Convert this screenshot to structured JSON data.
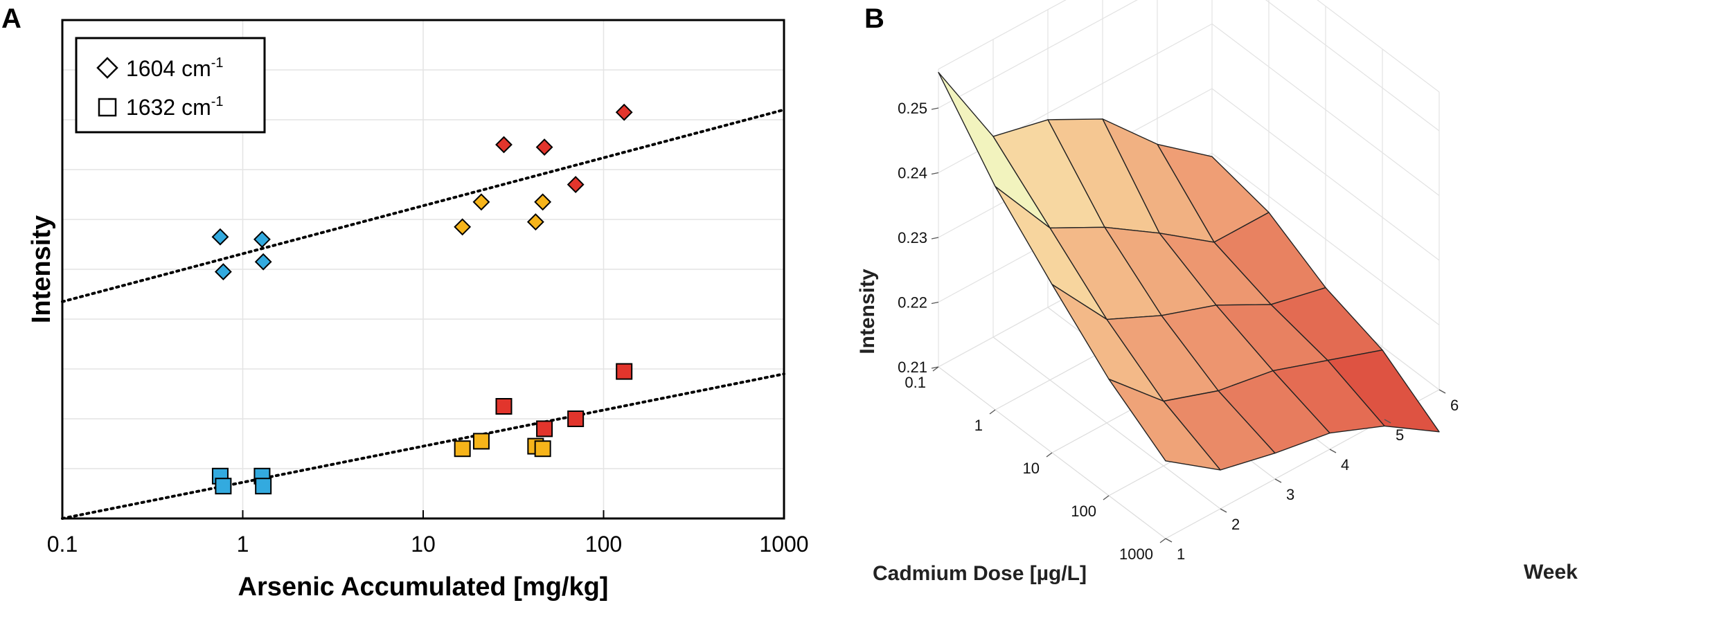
{
  "panels": {
    "a": {
      "label": "A"
    },
    "b": {
      "label": "B"
    }
  },
  "chart_data": [
    {
      "panel": "A",
      "type": "scatter",
      "title": "",
      "xlabel": "Arsenic Accumulated [mg/kg]",
      "ylabel": "Intensity",
      "xscale": "log",
      "xlim": [
        0.1,
        1000
      ],
      "ylim": [
        0,
        10
      ],
      "y_ticks_shown": false,
      "x_ticks": [
        0.1,
        1,
        10,
        100,
        1000
      ],
      "x_tick_labels": [
        "0.1",
        "1",
        "10",
        "100",
        "1000"
      ],
      "grid": true,
      "legend": {
        "placement": "top-left",
        "entries": [
          {
            "symbol": "diamond",
            "text": "1604 cm",
            "superscript": "-1"
          },
          {
            "symbol": "square",
            "text": "1632 cm",
            "superscript": "-1"
          }
        ]
      },
      "colors": {
        "low": "#33aadf",
        "mid": "#f6b41a",
        "high": "#e2352c"
      },
      "series": [
        {
          "name": "1604 cm-1",
          "marker": "diamond",
          "points": [
            {
              "x": 0.75,
              "y": 5.65,
              "group": "low"
            },
            {
              "x": 0.78,
              "y": 4.95,
              "group": "low"
            },
            {
              "x": 1.28,
              "y": 5.6,
              "group": "low"
            },
            {
              "x": 1.3,
              "y": 5.15,
              "group": "low"
            },
            {
              "x": 16.5,
              "y": 5.85,
              "group": "mid"
            },
            {
              "x": 21,
              "y": 6.35,
              "group": "mid"
            },
            {
              "x": 42,
              "y": 5.95,
              "group": "mid"
            },
            {
              "x": 46,
              "y": 6.35,
              "group": "mid"
            },
            {
              "x": 28,
              "y": 7.5,
              "group": "high"
            },
            {
              "x": 47,
              "y": 7.45,
              "group": "high"
            },
            {
              "x": 70,
              "y": 6.7,
              "group": "high"
            },
            {
              "x": 130,
              "y": 8.15,
              "group": "high"
            }
          ],
          "trendline": {
            "x": [
              0.1,
              1000
            ],
            "y": [
              4.35,
              8.2
            ]
          }
        },
        {
          "name": "1632 cm-1",
          "marker": "square",
          "points": [
            {
              "x": 0.75,
              "y": 0.85,
              "group": "low"
            },
            {
              "x": 0.78,
              "y": 0.65,
              "group": "low"
            },
            {
              "x": 1.28,
              "y": 0.85,
              "group": "low"
            },
            {
              "x": 1.3,
              "y": 0.65,
              "group": "low"
            },
            {
              "x": 16.5,
              "y": 1.4,
              "group": "mid"
            },
            {
              "x": 21,
              "y": 1.55,
              "group": "mid"
            },
            {
              "x": 42,
              "y": 1.45,
              "group": "mid"
            },
            {
              "x": 46,
              "y": 1.4,
              "group": "mid"
            },
            {
              "x": 28,
              "y": 2.25,
              "group": "high"
            },
            {
              "x": 47,
              "y": 1.8,
              "group": "high"
            },
            {
              "x": 70,
              "y": 2.0,
              "group": "high"
            },
            {
              "x": 130,
              "y": 2.95,
              "group": "high"
            }
          ],
          "trendline": {
            "x": [
              0.1,
              1000
            ],
            "y": [
              0.0,
              2.9
            ]
          }
        }
      ]
    },
    {
      "panel": "B",
      "type": "surface",
      "title": "",
      "xlabel": "Cadmium Dose [µg/L]",
      "ylabel": "Week",
      "zlabel": "Intensity",
      "x_ticks": [
        "0.1",
        "1",
        "10",
        "100",
        "1000"
      ],
      "y_ticks": [
        "1",
        "2",
        "3",
        "4",
        "5",
        "6"
      ],
      "z_ticks": [
        "0.21",
        "0.22",
        "0.23",
        "0.24",
        "0.25"
      ],
      "zlim": [
        0.21,
        0.256
      ],
      "colormap": [
        "#d6302a",
        "#ee9a72",
        "#f6cf98",
        "#fbf7c4",
        "#46a64c"
      ],
      "dose_levels": [
        0.1,
        1,
        10,
        100,
        1000
      ],
      "weeks": [
        1,
        2,
        3,
        4,
        5,
        6
      ],
      "intensity_grid": [
        [
          0.2555,
          0.2445,
          0.236,
          0.228,
          0.222
        ],
        [
          0.241,
          0.2335,
          0.226,
          0.22,
          0.216
        ],
        [
          0.239,
          0.229,
          0.222,
          0.217,
          0.214
        ],
        [
          0.2345,
          0.2235,
          0.219,
          0.2155,
          0.2125
        ],
        [
          0.226,
          0.2175,
          0.2145,
          0.2125,
          0.209
        ],
        [
          0.2195,
          0.2175,
          0.2125,
          0.2095,
          0.2035
        ]
      ]
    }
  ]
}
